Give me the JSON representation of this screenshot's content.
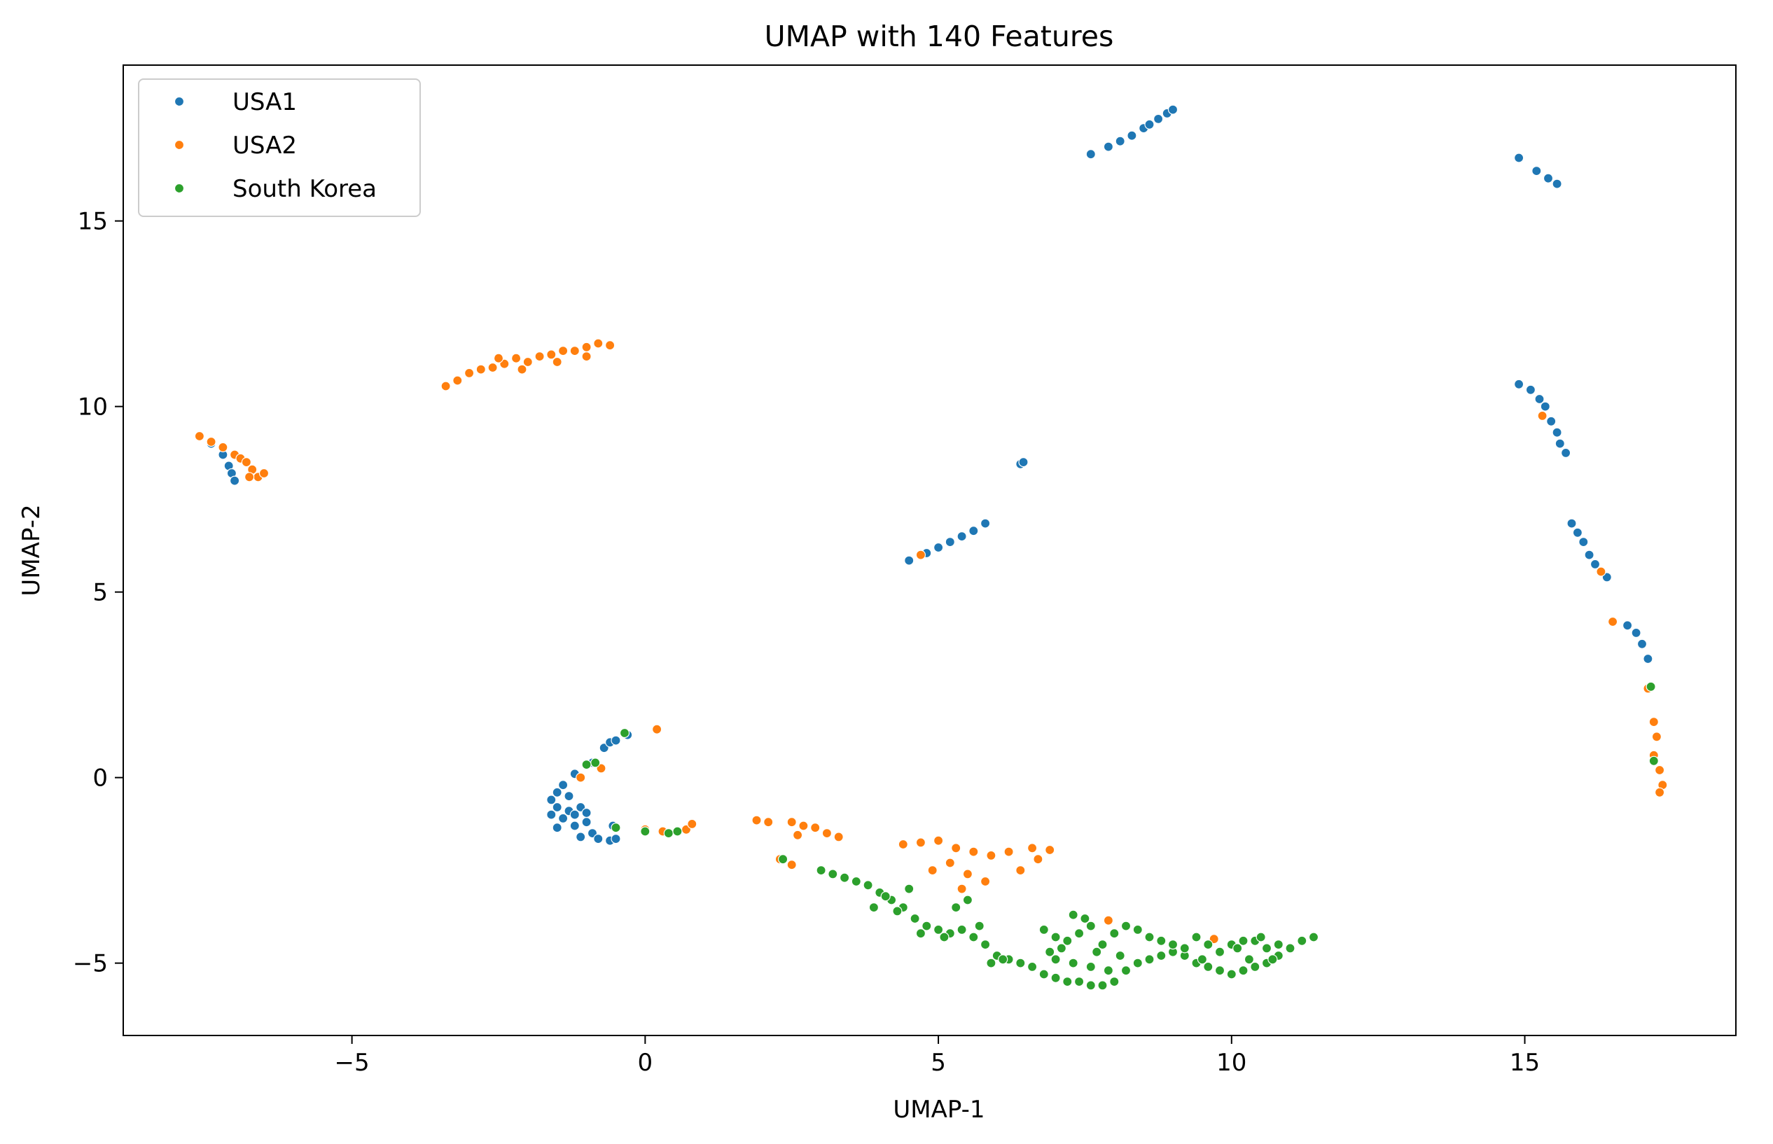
{
  "chart_data": {
    "type": "scatter",
    "title": "UMAP with 140 Features",
    "xlabel": "UMAP-1",
    "ylabel": "UMAP-2",
    "xlim": [
      -8.9,
      18.6
    ],
    "ylim": [
      -6.95,
      19.2
    ],
    "xticks": [
      -5,
      0,
      5,
      10,
      15
    ],
    "yticks": [
      -5,
      0,
      5,
      10,
      15
    ],
    "xtick_labels": [
      "−5",
      "0",
      "5",
      "10",
      "15"
    ],
    "ytick_labels": [
      "−5",
      "0",
      "5",
      "10",
      "15"
    ],
    "grid": false,
    "legend_position": "upper-left",
    "series": [
      {
        "name": "USA1",
        "color": "#1f77b4",
        "points": [
          [
            7.6,
            16.8
          ],
          [
            7.9,
            17.0
          ],
          [
            8.1,
            17.15
          ],
          [
            8.3,
            17.3
          ],
          [
            8.5,
            17.5
          ],
          [
            8.6,
            17.6
          ],
          [
            8.75,
            17.75
          ],
          [
            8.9,
            17.9
          ],
          [
            9.0,
            18.0
          ],
          [
            14.9,
            16.7
          ],
          [
            15.2,
            16.35
          ],
          [
            15.4,
            16.15
          ],
          [
            15.55,
            16.0
          ],
          [
            6.4,
            8.45
          ],
          [
            6.45,
            8.5
          ],
          [
            4.5,
            5.85
          ],
          [
            4.8,
            6.05
          ],
          [
            5.0,
            6.2
          ],
          [
            5.2,
            6.35
          ],
          [
            5.4,
            6.5
          ],
          [
            5.6,
            6.65
          ],
          [
            5.8,
            6.85
          ],
          [
            -7.4,
            9.0
          ],
          [
            -7.2,
            8.7
          ],
          [
            -7.1,
            8.4
          ],
          [
            -7.05,
            8.2
          ],
          [
            -7.0,
            8.0
          ],
          [
            14.9,
            10.6
          ],
          [
            15.1,
            10.45
          ],
          [
            15.25,
            10.2
          ],
          [
            15.35,
            10.0
          ],
          [
            15.45,
            9.6
          ],
          [
            15.55,
            9.3
          ],
          [
            15.6,
            9.0
          ],
          [
            15.7,
            8.75
          ],
          [
            15.8,
            6.85
          ],
          [
            15.9,
            6.6
          ],
          [
            16.0,
            6.35
          ],
          [
            16.1,
            6.0
          ],
          [
            16.2,
            5.75
          ],
          [
            16.4,
            5.4
          ],
          [
            16.75,
            4.1
          ],
          [
            16.9,
            3.9
          ],
          [
            17.0,
            3.6
          ],
          [
            17.1,
            3.2
          ],
          [
            -1.4,
            -0.2
          ],
          [
            -1.5,
            -0.4
          ],
          [
            -1.6,
            -0.6
          ],
          [
            -1.5,
            -0.8
          ],
          [
            -1.3,
            -0.9
          ],
          [
            -1.2,
            -1.0
          ],
          [
            -1.4,
            -1.1
          ],
          [
            -1.0,
            -1.2
          ],
          [
            -1.2,
            -1.3
          ],
          [
            -1.5,
            -1.35
          ],
          [
            -0.9,
            -1.5
          ],
          [
            -1.1,
            -1.6
          ],
          [
            -0.8,
            -1.65
          ],
          [
            -0.6,
            -1.7
          ],
          [
            -0.5,
            -1.65
          ],
          [
            -0.55,
            -1.3
          ],
          [
            -1.3,
            -0.5
          ],
          [
            -1.1,
            -0.8
          ],
          [
            -1.6,
            -1.0
          ],
          [
            -1.0,
            -0.95
          ],
          [
            -1.2,
            0.1
          ],
          [
            -0.9,
            0.4
          ],
          [
            -0.7,
            0.8
          ],
          [
            -0.6,
            0.95
          ],
          [
            -0.5,
            1.0
          ],
          [
            -0.3,
            1.15
          ]
        ]
      },
      {
        "name": "USA2",
        "color": "#ff7f0e",
        "points": [
          [
            -3.4,
            10.55
          ],
          [
            -3.2,
            10.7
          ],
          [
            -3.0,
            10.9
          ],
          [
            -2.8,
            11.0
          ],
          [
            -2.6,
            11.05
          ],
          [
            -2.4,
            11.15
          ],
          [
            -2.2,
            11.3
          ],
          [
            -2.0,
            11.2
          ],
          [
            -1.8,
            11.35
          ],
          [
            -1.6,
            11.4
          ],
          [
            -1.4,
            11.5
          ],
          [
            -1.2,
            11.5
          ],
          [
            -1.0,
            11.6
          ],
          [
            -0.8,
            11.7
          ],
          [
            -0.6,
            11.65
          ],
          [
            -2.5,
            11.3
          ],
          [
            -2.1,
            11.0
          ],
          [
            -1.5,
            11.2
          ],
          [
            -1.0,
            11.35
          ],
          [
            -7.6,
            9.2
          ],
          [
            -7.4,
            9.05
          ],
          [
            -7.2,
            8.9
          ],
          [
            -7.0,
            8.7
          ],
          [
            -6.9,
            8.6
          ],
          [
            -6.8,
            8.5
          ],
          [
            -6.7,
            8.3
          ],
          [
            -6.6,
            8.1
          ],
          [
            -6.5,
            8.2
          ],
          [
            -6.75,
            8.1
          ],
          [
            4.7,
            6.0
          ],
          [
            15.3,
            9.75
          ],
          [
            16.3,
            5.55
          ],
          [
            16.5,
            4.2
          ],
          [
            17.1,
            2.4
          ],
          [
            17.2,
            1.5
          ],
          [
            17.25,
            1.1
          ],
          [
            17.2,
            0.6
          ],
          [
            17.3,
            0.2
          ],
          [
            17.35,
            -0.2
          ],
          [
            17.3,
            -0.4
          ],
          [
            0.0,
            -1.4
          ],
          [
            0.3,
            -1.45
          ],
          [
            0.7,
            -1.4
          ],
          [
            0.8,
            -1.25
          ],
          [
            1.9,
            -1.15
          ],
          [
            2.1,
            -1.2
          ],
          [
            2.5,
            -1.2
          ],
          [
            2.7,
            -1.3
          ],
          [
            2.9,
            -1.35
          ],
          [
            3.1,
            -1.5
          ],
          [
            3.3,
            -1.6
          ],
          [
            2.6,
            -1.55
          ],
          [
            -1.1,
            0.0
          ],
          [
            -0.75,
            0.25
          ],
          [
            0.2,
            1.3
          ],
          [
            2.3,
            -2.2
          ],
          [
            2.5,
            -2.35
          ],
          [
            4.4,
            -1.8
          ],
          [
            4.7,
            -1.75
          ],
          [
            5.0,
            -1.7
          ],
          [
            5.3,
            -1.9
          ],
          [
            5.6,
            -2.0
          ],
          [
            5.9,
            -2.1
          ],
          [
            6.2,
            -2.0
          ],
          [
            6.6,
            -1.9
          ],
          [
            6.9,
            -1.95
          ],
          [
            5.2,
            -2.3
          ],
          [
            5.5,
            -2.6
          ],
          [
            5.8,
            -2.8
          ],
          [
            6.4,
            -2.5
          ],
          [
            6.7,
            -2.2
          ],
          [
            5.4,
            -3.0
          ],
          [
            4.9,
            -2.5
          ],
          [
            7.9,
            -3.85
          ],
          [
            9.7,
            -4.35
          ]
        ]
      },
      {
        "name": "South Korea",
        "color": "#2ca02c",
        "points": [
          [
            0.0,
            -1.45
          ],
          [
            0.4,
            -1.5
          ],
          [
            0.55,
            -1.45
          ],
          [
            -0.5,
            -1.35
          ],
          [
            -0.35,
            1.2
          ],
          [
            -0.85,
            0.4
          ],
          [
            -1.0,
            0.35
          ],
          [
            17.15,
            2.45
          ],
          [
            17.2,
            0.45
          ],
          [
            2.35,
            -2.2
          ],
          [
            3.0,
            -2.5
          ],
          [
            3.2,
            -2.6
          ],
          [
            3.4,
            -2.7
          ],
          [
            3.6,
            -2.8
          ],
          [
            3.8,
            -2.9
          ],
          [
            4.0,
            -3.1
          ],
          [
            4.2,
            -3.3
          ],
          [
            4.4,
            -3.5
          ],
          [
            4.6,
            -3.8
          ],
          [
            4.8,
            -4.0
          ],
          [
            5.0,
            -4.1
          ],
          [
            5.2,
            -4.2
          ],
          [
            5.4,
            -4.1
          ],
          [
            5.6,
            -4.3
          ],
          [
            5.8,
            -4.5
          ],
          [
            6.0,
            -4.8
          ],
          [
            6.2,
            -4.9
          ],
          [
            6.4,
            -5.0
          ],
          [
            6.6,
            -5.1
          ],
          [
            6.8,
            -5.3
          ],
          [
            7.0,
            -5.4
          ],
          [
            7.2,
            -5.5
          ],
          [
            7.4,
            -5.5
          ],
          [
            7.6,
            -5.6
          ],
          [
            7.8,
            -5.6
          ],
          [
            8.0,
            -5.5
          ],
          [
            8.2,
            -5.2
          ],
          [
            8.4,
            -5.0
          ],
          [
            8.6,
            -4.9
          ],
          [
            8.8,
            -4.8
          ],
          [
            9.0,
            -4.7
          ],
          [
            9.2,
            -4.8
          ],
          [
            9.4,
            -5.0
          ],
          [
            9.6,
            -5.1
          ],
          [
            9.8,
            -5.2
          ],
          [
            10.0,
            -5.3
          ],
          [
            10.2,
            -5.2
          ],
          [
            10.4,
            -5.1
          ],
          [
            10.6,
            -5.0
          ],
          [
            10.8,
            -4.8
          ],
          [
            11.0,
            -4.6
          ],
          [
            11.2,
            -4.4
          ],
          [
            11.4,
            -4.3
          ],
          [
            6.8,
            -4.1
          ],
          [
            7.0,
            -4.3
          ],
          [
            7.2,
            -4.4
          ],
          [
            7.4,
            -4.2
          ],
          [
            7.6,
            -4.0
          ],
          [
            7.8,
            -4.5
          ],
          [
            8.0,
            -4.2
          ],
          [
            8.2,
            -4.0
          ],
          [
            8.4,
            -4.1
          ],
          [
            8.6,
            -4.3
          ],
          [
            8.8,
            -4.4
          ],
          [
            9.0,
            -4.5
          ],
          [
            9.2,
            -4.6
          ],
          [
            9.4,
            -4.3
          ],
          [
            9.6,
            -4.5
          ],
          [
            9.8,
            -4.7
          ],
          [
            10.0,
            -4.5
          ],
          [
            10.2,
            -4.4
          ],
          [
            10.4,
            -4.4
          ],
          [
            10.6,
            -4.6
          ],
          [
            10.8,
            -4.5
          ],
          [
            7.5,
            -3.8
          ],
          [
            7.3,
            -3.7
          ],
          [
            7.0,
            -4.9
          ],
          [
            7.3,
            -5.0
          ],
          [
            7.6,
            -5.1
          ],
          [
            7.9,
            -5.2
          ],
          [
            8.1,
            -4.8
          ],
          [
            7.7,
            -4.7
          ],
          [
            7.1,
            -4.6
          ],
          [
            6.9,
            -4.7
          ],
          [
            9.5,
            -4.9
          ],
          [
            10.3,
            -4.9
          ],
          [
            10.5,
            -4.3
          ],
          [
            10.7,
            -4.9
          ],
          [
            10.1,
            -4.6
          ],
          [
            4.5,
            -3.0
          ],
          [
            4.1,
            -3.2
          ],
          [
            3.9,
            -3.5
          ],
          [
            4.3,
            -3.6
          ],
          [
            4.7,
            -4.2
          ],
          [
            5.1,
            -4.3
          ],
          [
            5.3,
            -3.5
          ],
          [
            5.5,
            -3.3
          ],
          [
            5.7,
            -4.0
          ],
          [
            6.1,
            -4.9
          ],
          [
            5.9,
            -5.0
          ]
        ]
      }
    ]
  }
}
